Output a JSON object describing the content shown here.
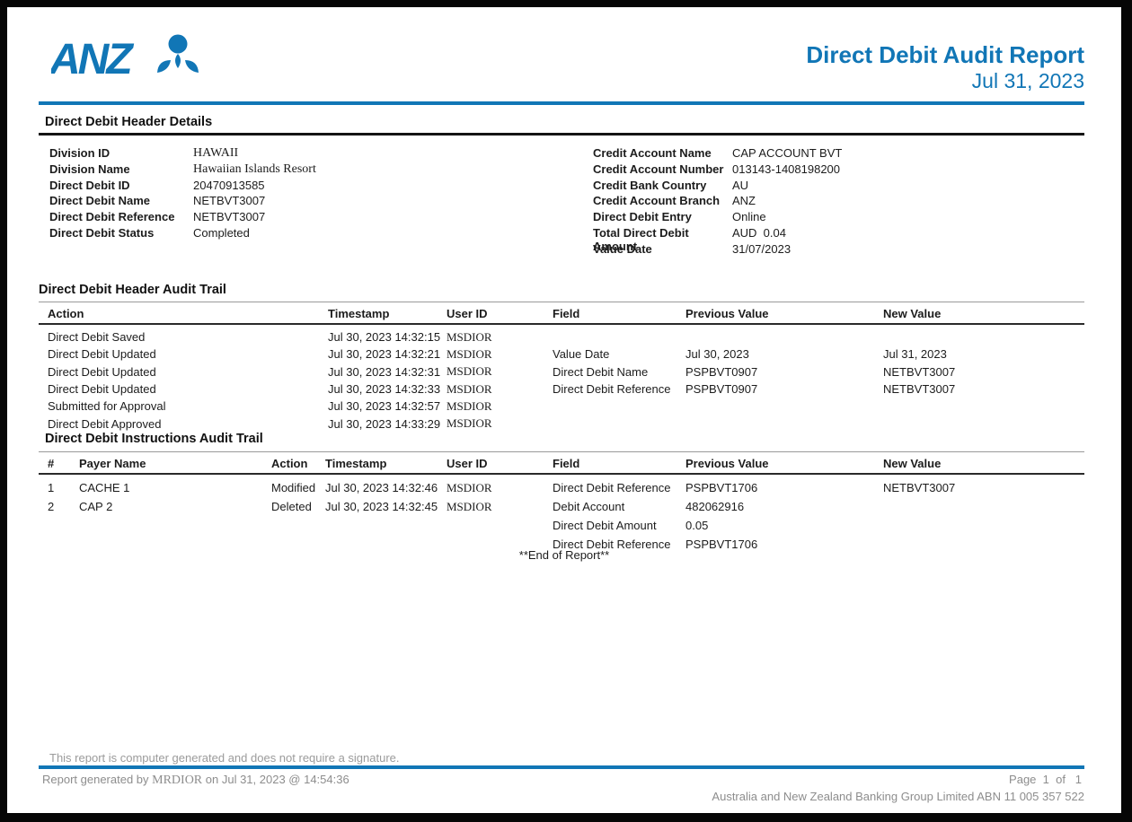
{
  "brand": {
    "name": "ANZ",
    "logo_color": "#1176b6"
  },
  "header": {
    "title": "Direct Debit Audit Report",
    "date": "Jul 31, 2023"
  },
  "header_details": {
    "section_title": "Direct Debit Header Details",
    "left": [
      {
        "label": "Division ID",
        "value": "HAWAII",
        "serif": true
      },
      {
        "label": "Division Name",
        "value": "Hawaiian Islands Resort",
        "serif": true
      },
      {
        "label": "Direct Debit ID",
        "value": "20470913585"
      },
      {
        "label": "Direct Debit Name",
        "value": "NETBVT3007"
      },
      {
        "label": "Direct Debit Reference",
        "value": "NETBVT3007"
      },
      {
        "label": "Direct Debit Status",
        "value": "Completed"
      }
    ],
    "right": [
      {
        "label": "Credit Account Name",
        "value": "CAP ACCOUNT BVT"
      },
      {
        "label": "Credit Account Number",
        "value": "013143-1408198200"
      },
      {
        "label": "Credit Bank Country",
        "value": "AU"
      },
      {
        "label": "Credit Account Branch",
        "value": "ANZ"
      },
      {
        "label": "Direct Debit Entry",
        "value": "Online"
      },
      {
        "label": "Total Direct Debit Amount",
        "value": "AUD  0.04"
      },
      {
        "label": "Value Date",
        "value": "31/07/2023"
      }
    ]
  },
  "header_audit": {
    "section_title": "Direct Debit Header Audit Trail",
    "columns": [
      "Action",
      "Timestamp",
      "User ID",
      "Field",
      "Previous Value",
      "New Value"
    ],
    "rows": [
      [
        "Direct Debit Saved",
        "Jul 30, 2023 14:32:15",
        "MSDIOR",
        "",
        "",
        ""
      ],
      [
        "Direct Debit Updated",
        "Jul 30, 2023 14:32:21",
        "MSDIOR",
        "Value Date",
        "Jul 30, 2023",
        "Jul 31, 2023"
      ],
      [
        "Direct Debit Updated",
        "Jul 30, 2023 14:32:31",
        "MSDIOR",
        "Direct Debit Name",
        "PSPBVT0907",
        "NETBVT3007"
      ],
      [
        "Direct Debit Updated",
        "Jul 30, 2023 14:32:33",
        "MSDIOR",
        "Direct Debit Reference",
        "PSPBVT0907",
        "NETBVT3007"
      ],
      [
        "Submitted for Approval",
        "Jul 30, 2023 14:32:57",
        "MSDIOR",
        "",
        "",
        ""
      ],
      [
        "Direct Debit Approved",
        "Jul 30, 2023 14:33:29",
        "MSDIOR",
        "",
        "",
        ""
      ]
    ]
  },
  "instructions_audit": {
    "section_title": "Direct Debit Instructions Audit Trail",
    "columns": [
      "#",
      "Payer Name",
      "Action",
      "Timestamp",
      "User ID",
      "Field",
      "Previous Value",
      "New Value"
    ],
    "rows": [
      [
        "1",
        "CACHE 1",
        "Modified",
        "Jul 30, 2023 14:32:46",
        "MSDIOR",
        "Direct Debit Reference",
        "PSPBVT1706",
        "NETBVT3007"
      ],
      [
        "2",
        "CAP 2",
        "Deleted",
        "Jul 30, 2023 14:32:45",
        "MSDIOR",
        "Debit Account",
        "482062916",
        ""
      ],
      [
        "",
        "",
        "",
        "",
        "",
        "Direct Debit Amount",
        "0.05",
        ""
      ],
      [
        "",
        "",
        "",
        "",
        "",
        "Direct Debit Reference",
        "PSPBVT1706",
        ""
      ]
    ],
    "end_marker": "**End of Report**"
  },
  "footer": {
    "signature_note": "This report is computer generated and does not require a signature.",
    "generated_prefix": "Report generated by ",
    "generated_user": "MRDIOR",
    "generated_suffix": " on Jul 31, 2023 @ 14:54:36",
    "page_label": "Page  1  of   1",
    "company": "Australia and New Zealand Banking Group Limited ABN 11 005 357 522"
  }
}
